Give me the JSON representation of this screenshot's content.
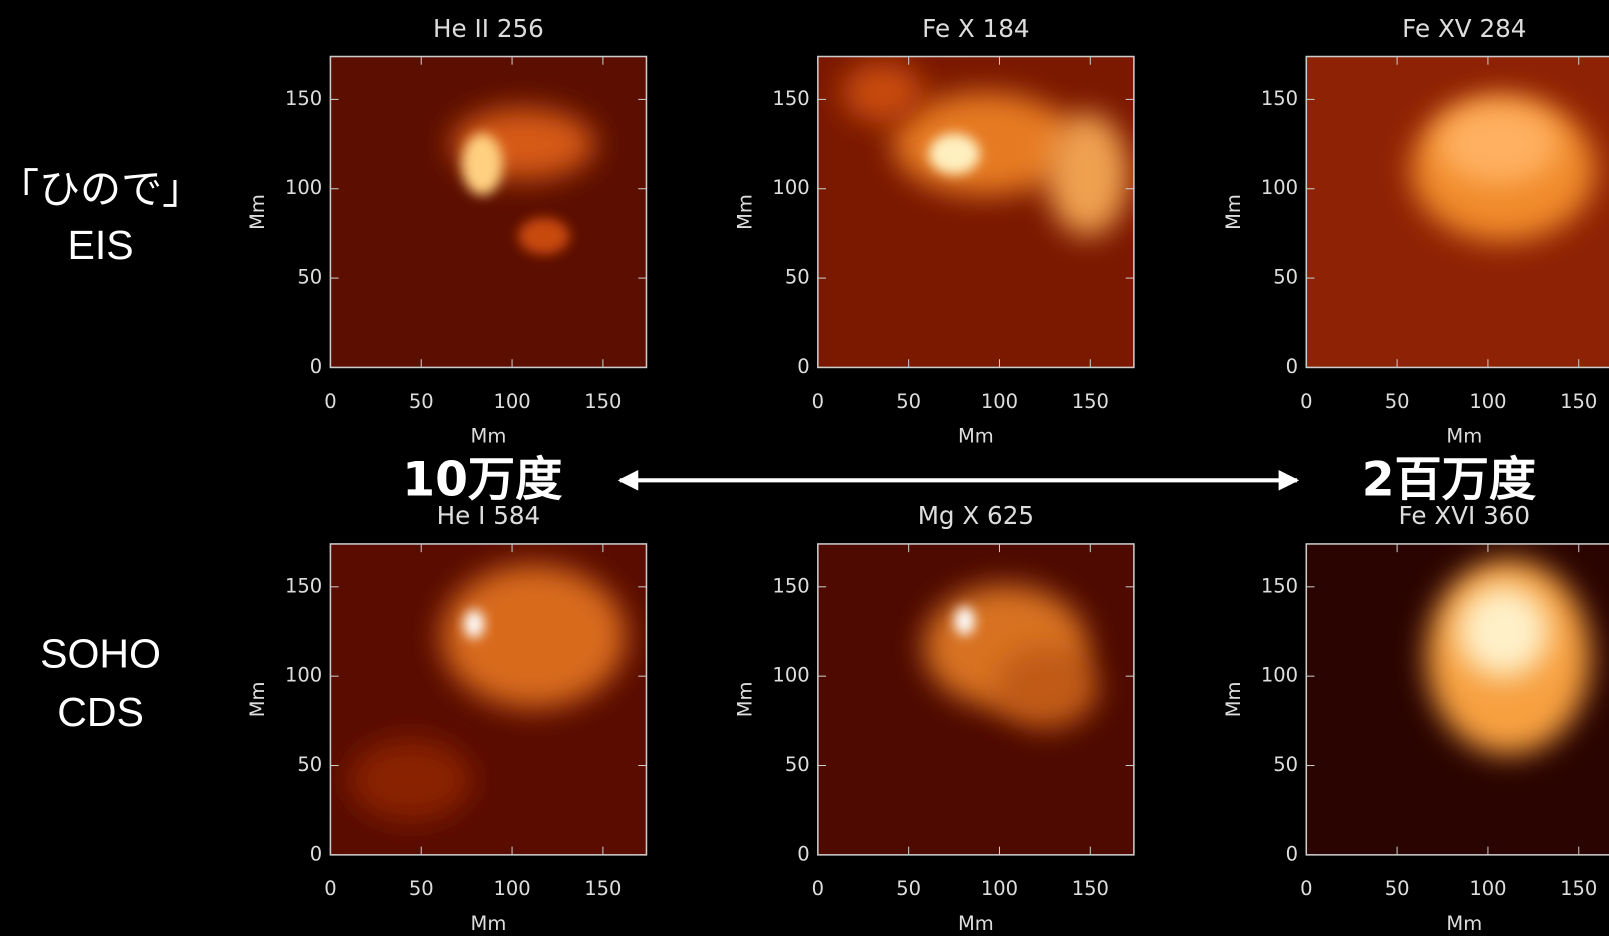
{
  "row_labels": [
    [
      "「ひので」",
      "EIS"
    ],
    [
      "SOHO",
      "CDS"
    ]
  ],
  "temperature": {
    "low": "10万度",
    "high": "2百万度"
  },
  "axes": {
    "label": "Mm",
    "lim": [
      0,
      174
    ],
    "ticks": [
      0,
      50,
      100,
      150
    ]
  },
  "panels": [
    {
      "title": "He II 256"
    },
    {
      "title": "Fe X 184"
    },
    {
      "title": "Fe XV 284"
    },
    {
      "title": "He I 584"
    },
    {
      "title": "Mg X 625"
    },
    {
      "title": "Fe XVI 360"
    }
  ]
}
